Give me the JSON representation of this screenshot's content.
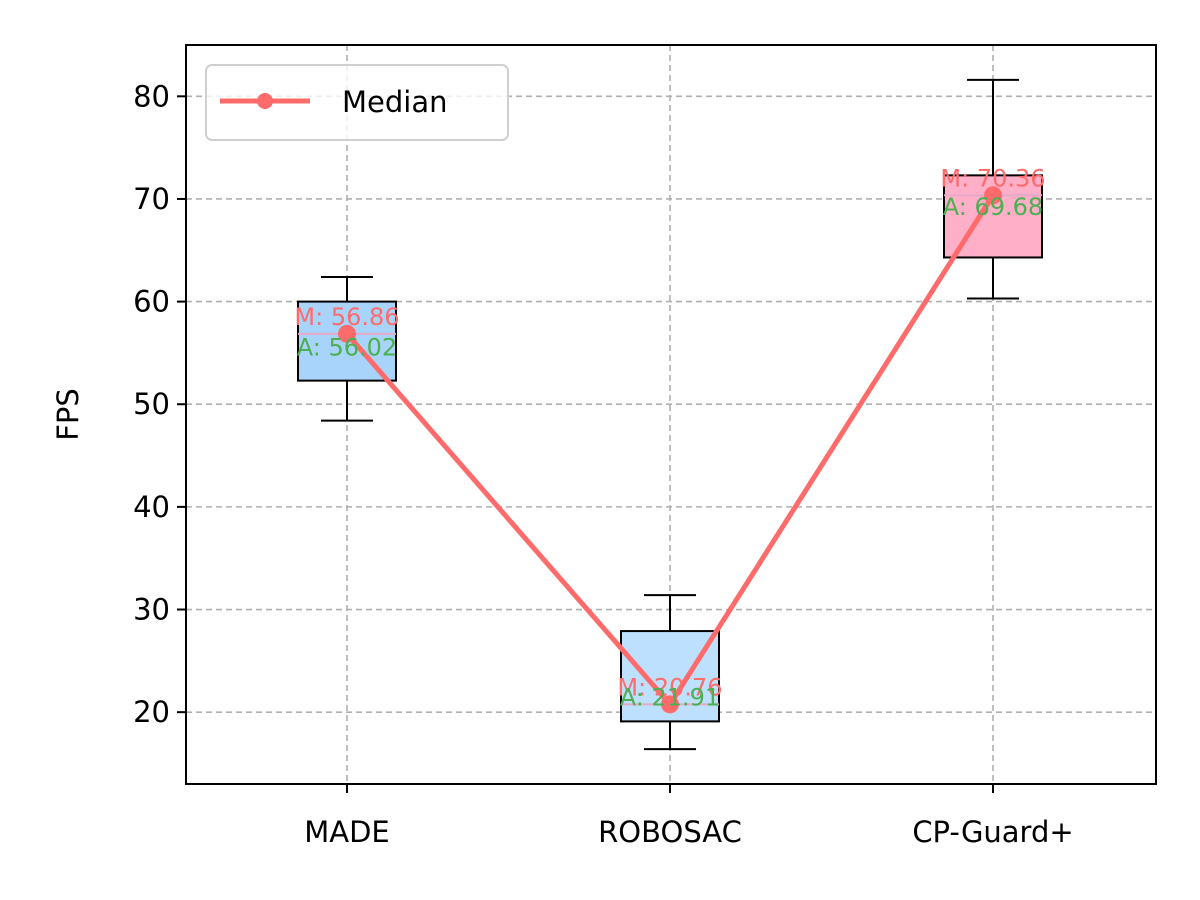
{
  "chart_data": {
    "type": "box",
    "title": "",
    "xlabel": "",
    "ylabel": "FPS",
    "ylim": [
      13,
      85
    ],
    "yticks": [
      20,
      30,
      40,
      50,
      60,
      70,
      80
    ],
    "grid": true,
    "legend": {
      "placement": "top-left",
      "entries": [
        {
          "label": "Median",
          "color": "#ff6b6b",
          "marker": "circle"
        }
      ]
    },
    "categories": [
      "MADE",
      "ROBOSAC",
      "CP-Guard+"
    ],
    "boxes": [
      {
        "category": "MADE",
        "whisker_low": 48.4,
        "q1": 52.3,
        "median": 56.86,
        "q3": 60.0,
        "whisker_high": 62.4,
        "mean": 56.02,
        "fill": "#a8d4fb"
      },
      {
        "category": "ROBOSAC",
        "whisker_low": 16.4,
        "q1": 19.1,
        "median": 20.76,
        "q3": 27.9,
        "whisker_high": 31.4,
        "mean": 21.91,
        "fill": "#bde0fe"
      },
      {
        "category": "CP-Guard+",
        "whisker_low": 60.3,
        "q1": 64.3,
        "median": 70.36,
        "q3": 72.3,
        "whisker_high": 81.6,
        "mean": 69.68,
        "fill": "#ffafc8"
      }
    ],
    "median_annotations": [
      "M: 56.86",
      "M: 20.76",
      "M: 70.36"
    ],
    "mean_annotations": [
      "A: 56.02",
      "A: 21.91",
      "A: 69.68"
    ],
    "series": [
      {
        "name": "Median",
        "values": [
          56.86,
          20.76,
          70.36
        ]
      }
    ],
    "colors": {
      "median_line": "#ff6b6b",
      "median_text": "#ff6b6b",
      "mean_text": "#4caf50",
      "grid": "#b0b0b0"
    }
  }
}
